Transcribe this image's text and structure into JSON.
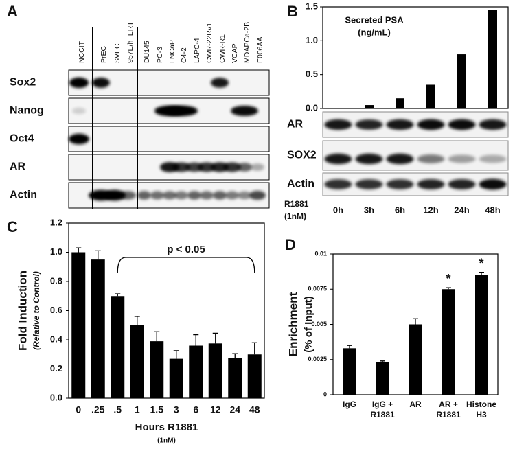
{
  "panels": [
    "A",
    "B",
    "C",
    "D"
  ],
  "blot_a": {
    "lanes": [
      "NCCIT",
      "PrEC",
      "SVEC",
      "957E/hTERT",
      "DU145",
      "PC-3",
      "LNCaP",
      "C4-2",
      "LAPC-4",
      "CWR-22Rv1",
      "CWR-R1",
      "VCAP",
      "MDAPCa-2B",
      "E006AA"
    ],
    "rows": [
      "Sox2",
      "Nanog",
      "Oct4",
      "AR",
      "Actin"
    ]
  },
  "blot_b": {
    "rows": [
      "AR",
      "SOX2",
      "Actin"
    ],
    "treatment": [
      "R1881",
      "(1nM)"
    ]
  },
  "chart_data": [
    {
      "type": "bar",
      "title": [
        "Secreted PSA",
        "(ng/mL)"
      ],
      "categories": [
        "0h",
        "3h",
        "6h",
        "12h",
        "24h",
        "48h"
      ],
      "values": [
        0,
        0.05,
        0.15,
        0.35,
        0.8,
        1.45
      ],
      "color": "#000000",
      "ylim": [
        0,
        1.5
      ],
      "yticks": [
        {
          "value": 0,
          "label": "0.0"
        },
        0.5,
        {
          "value": 1,
          "label": "1.0"
        },
        1.5
      ]
    },
    {
      "type": "bar",
      "categories": [
        "0",
        ".25",
        ".5",
        "1",
        "1.5",
        "3",
        "6",
        "12",
        "24",
        "48"
      ],
      "values": [
        1.0,
        0.95,
        0.7,
        0.5,
        0.39,
        0.27,
        0.36,
        0.375,
        0.275,
        0.3
      ],
      "errors": [
        0.03,
        0.06,
        0.015,
        0.06,
        0.065,
        0.055,
        0.075,
        0.07,
        0.03,
        0.08
      ],
      "color": "#000000",
      "ylim": [
        0,
        1.2
      ],
      "yticks": [
        {
          "value": 0,
          "label": "0.0"
        },
        0.2,
        0.4,
        0.6,
        0.8,
        {
          "value": 1,
          "label": "1.0"
        },
        1.2
      ],
      "y_label": [
        "Fold Induction",
        "(Relative to Control)"
      ],
      "x_label": [
        "Hours R1881",
        "(1nM)"
      ],
      "annotation": "p < 0.05"
    },
    {
      "type": "bar",
      "categories": [
        [
          "IgG"
        ],
        [
          "IgG +",
          "R1881"
        ],
        [
          "AR"
        ],
        [
          "AR +",
          "R1881"
        ],
        [
          "Histone",
          "H3"
        ]
      ],
      "values": [
        0.0033,
        0.0023,
        0.005,
        0.0075,
        0.0085
      ],
      "errors": [
        0.0002,
        0.0001,
        0.0004,
        0.0001,
        0.0002
      ],
      "annotations": [
        null,
        null,
        null,
        "*",
        "*"
      ],
      "color": "#000000",
      "ylim": [
        0,
        0.01
      ],
      "yticks": [
        0,
        0.0025,
        0.005,
        0.0075,
        0.01
      ],
      "y_label": [
        "Enrichment",
        "(% of Input)"
      ]
    }
  ]
}
